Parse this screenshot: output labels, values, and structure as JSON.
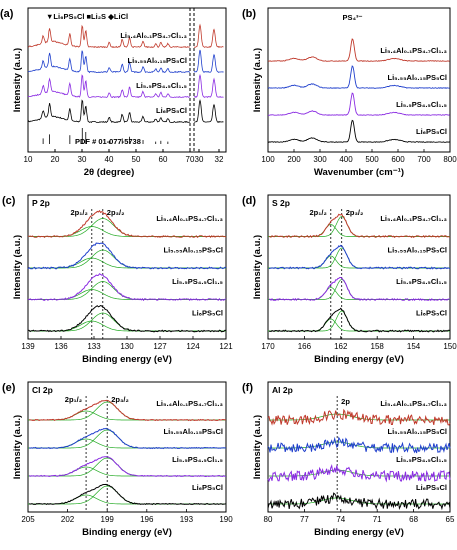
{
  "figure": {
    "panels": [
      {
        "id": "a",
        "label": "(a)",
        "type": "line",
        "xlabel": "2θ (degree)",
        "ylabel": "Intensity (a.u.)",
        "xlim": [
          10,
          70
        ],
        "xticks": [
          10,
          20,
          30,
          40,
          50,
          60,
          70
        ],
        "legend": [
          "▼Li₆PS₅Cl",
          "■Li₂S",
          "◆LiCl"
        ],
        "annotation": "PDF # 01-077-5738",
        "zoom_xticks": [
          30,
          32
        ],
        "series": [
          {
            "name": "Li₆PS₅Cl",
            "color": "#000000",
            "offset": 0
          },
          {
            "name": "Li₅.₅PS₄.₅Cl₁.₅",
            "color": "#8a2be2",
            "offset": 1
          },
          {
            "name": "Li₅.₅₅Al₀.₁₅PS₅Cl",
            "color": "#1f3fcc",
            "offset": 2
          },
          {
            "name": "Li₅.₄Al₀.₁PS₄.₇Cl₁.₃",
            "color": "#c0392b",
            "offset": 3
          }
        ],
        "peaks": [
          [
            15.6,
            0.35
          ],
          [
            18.0,
            0.6
          ],
          [
            25.5,
            0.55
          ],
          [
            30.1,
            1.0
          ],
          [
            31.4,
            0.75
          ],
          [
            40.1,
            0.2
          ],
          [
            44.9,
            0.35
          ],
          [
            47.6,
            0.45
          ],
          [
            52.6,
            0.25
          ],
          [
            57.3,
            0.15
          ],
          [
            59.2,
            0.2
          ],
          [
            61.8,
            0.15
          ]
        ]
      },
      {
        "id": "b",
        "label": "(b)",
        "type": "line",
        "xlabel": "Wavenumber (cm⁻¹)",
        "ylabel": "Intensity (a.u.)",
        "xlim": [
          100,
          800
        ],
        "xticks": [
          100,
          200,
          300,
          400,
          500,
          600,
          700,
          800
        ],
        "annotation": "PS₄³⁻",
        "peaks": [
          [
            200,
            0.12
          ],
          [
            270,
            0.18
          ],
          [
            425,
            1.0
          ],
          [
            575,
            0.08
          ],
          [
            600,
            0.06
          ]
        ],
        "series": [
          {
            "name": "Li₆PS₅Cl",
            "color": "#000000"
          },
          {
            "name": "Li₅.₅PS₄.₅Cl₁.₅",
            "color": "#8a2be2"
          },
          {
            "name": "Li₅.₅₅Al₀.₁₅PS₅Cl",
            "color": "#1f3fcc"
          },
          {
            "name": "Li₅.₄Al₀.₁PS₄.₇Cl₁.₃",
            "color": "#c0392b"
          }
        ]
      },
      {
        "id": "c",
        "label": "(c)",
        "type": "line",
        "tag": "P 2p",
        "peak_labels": [
          "2p₁/₂",
          "2p₃/₂"
        ],
        "peak_positions": [
          133.2,
          132.2
        ],
        "xlabel": "Binding energy (eV)",
        "ylabel": "Intensity (a.u.)",
        "xlim": [
          139,
          121
        ],
        "xticks": [
          139,
          136,
          133,
          130,
          127,
          124,
          121
        ],
        "series": [
          {
            "name": "Li₆PS₅Cl",
            "color": "#000000"
          },
          {
            "name": "Li₅.₅PS₄.₅Cl₁.₅",
            "color": "#8a2be2"
          },
          {
            "name": "Li₅.₅₅Al₀.₁₅PS₅Cl",
            "color": "#1f3fcc"
          },
          {
            "name": "Li₅.₄Al₀.₁PS₄.₇Cl₁.₃",
            "color": "#c0392b"
          }
        ]
      },
      {
        "id": "d",
        "label": "(d)",
        "type": "line",
        "tag": "S 2p",
        "peak_labels": [
          "2p₁/₂",
          "2p₃/₂"
        ],
        "peak_positions": [
          163.1,
          161.9
        ],
        "xlabel": "Binding energy (eV)",
        "ylabel": "Intensity (a.u.)",
        "xlim": [
          170,
          150
        ],
        "xticks": [
          170,
          166,
          162,
          158,
          154,
          150
        ],
        "series": [
          {
            "name": "Li₆PS₅Cl",
            "color": "#000000"
          },
          {
            "name": "Li₅.₅PS₄.₅Cl₁.₅",
            "color": "#8a2be2"
          },
          {
            "name": "Li₅.₅₅Al₀.₁₅PS₅Cl",
            "color": "#1f3fcc"
          },
          {
            "name": "Li₅.₄Al₀.₁PS₄.₇Cl₁.₃",
            "color": "#c0392b"
          }
        ]
      },
      {
        "id": "e",
        "label": "(e)",
        "type": "line",
        "tag": "Cl 2p",
        "peak_labels": [
          "2p₁/₂",
          "2p₃/₂"
        ],
        "peak_positions": [
          200.6,
          199.0
        ],
        "xlabel": "Binding energy (eV)",
        "ylabel": "Intensity (a.u.)",
        "xlim": [
          205,
          190
        ],
        "xticks": [
          205,
          202,
          199,
          196,
          193,
          190
        ],
        "series": [
          {
            "name": "Li₆PS₅Cl",
            "color": "#000000"
          },
          {
            "name": "Li₅.₅PS₄.₅Cl₁.₅",
            "color": "#8a2be2"
          },
          {
            "name": "Li₅.₅₅Al₀.₁₅PS₅Cl",
            "color": "#1f3fcc"
          },
          {
            "name": "Li₅.₄Al₀.₁PS₄.₇Cl₁.₃",
            "color": "#c0392b"
          }
        ]
      },
      {
        "id": "f",
        "label": "(f)",
        "type": "line",
        "tag": "Al 2p",
        "peak_labels": [
          "2p"
        ],
        "peak_positions": [
          74.3
        ],
        "xlabel": "Binding energy (eV)",
        "ylabel": "Intensity (a.u.)",
        "xlim": [
          80,
          65
        ],
        "xticks": [
          80,
          77,
          74,
          71,
          68,
          65
        ],
        "series": [
          {
            "name": "Li₆PS₅Cl",
            "color": "#000000"
          },
          {
            "name": "Li₅.₅PS₄.₅Cl₁.₅",
            "color": "#8a2be2"
          },
          {
            "name": "Li₅.₅₅Al₀.₁₅PS₅Cl",
            "color": "#1f3fcc"
          },
          {
            "name": "Li₅.₄Al₀.₁PS₄.₇Cl₁.₃",
            "color": "#c0392b"
          }
        ]
      }
    ]
  },
  "chart_data": [
    {
      "type": "line",
      "xlabel": "2θ (degree)",
      "ylabel": "Intensity (a.u.)",
      "xlim": [
        10,
        70
      ],
      "series": [
        {
          "name": "Li₆PS₅Cl"
        },
        {
          "name": "Li₅.₅PS₄.₅Cl₁.₅"
        },
        {
          "name": "Li₅.₅₅Al₀.₁₅PS₅Cl"
        },
        {
          "name": "Li₅.₄Al₀.₁PS₄.₇Cl₁.₃"
        }
      ]
    },
    {
      "type": "line",
      "xlabel": "Wavenumber (cm⁻¹)",
      "ylabel": "Intensity (a.u.)",
      "xlim": [
        100,
        800
      ],
      "series": [
        {
          "name": "Li₆PS₅Cl"
        },
        {
          "name": "Li₅.₅PS₄.₅Cl₁.₅"
        },
        {
          "name": "Li₅.₅₅Al₀.₁₅PS₅Cl"
        },
        {
          "name": "Li₅.₄Al₀.₁PS₄.₇Cl₁.₃"
        }
      ]
    },
    {
      "type": "line",
      "xlabel": "Binding energy (eV)",
      "ylabel": "Intensity (a.u.)",
      "xlim": [
        139,
        121
      ]
    },
    {
      "type": "line",
      "xlabel": "Binding energy (eV)",
      "ylabel": "Intensity (a.u.)",
      "xlim": [
        170,
        150
      ]
    },
    {
      "type": "line",
      "xlabel": "Binding energy (eV)",
      "ylabel": "Intensity (a.u.)",
      "xlim": [
        205,
        190
      ]
    },
    {
      "type": "line",
      "xlabel": "Binding energy (eV)",
      "ylabel": "Intensity (a.u.)",
      "xlim": [
        80,
        65
      ]
    }
  ]
}
